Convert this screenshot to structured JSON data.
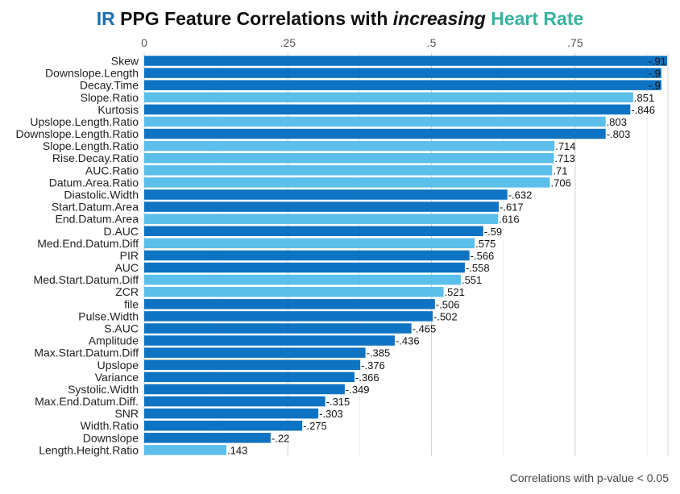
{
  "title": {
    "part1": "IR",
    "part2": " PPG Feature Correlations with ",
    "part3": "increasing",
    "part4": " Heart Rate"
  },
  "caption": "Correlations with p-value < 0.05",
  "colors": {
    "negative": "#0e73c2",
    "positive": "#5bbfea",
    "title_ir": "#1a6fae",
    "title_hr": "#35b3a0"
  },
  "chart_data": {
    "type": "bar",
    "orientation": "horizontal",
    "xlim": [
      0,
      0.91
    ],
    "xticks": [
      0,
      0.25,
      0.5,
      0.75
    ],
    "xtick_labels": [
      "0",
      ".25",
      ".5",
      ".75"
    ],
    "grid": true,
    "categories": [
      "Skew",
      "Downslope.Length",
      "Decay.Time",
      "Slope.Ratio",
      "Kurtosis",
      "Upslope.Length.Ratio",
      "Downslope.Length.Ratio",
      "Slope.Length.Ratio",
      "Rise.Decay.Ratio",
      "AUC.Ratio",
      "Datum.Area.Ratio",
      "Diastolic.Width",
      "Start.Datum.Area",
      "End.Datum.Area",
      "D.AUC",
      "Med.End.Datum.Diff",
      "PIR",
      "AUC",
      "Med.Start.Datum.Diff",
      "ZCR",
      "file",
      "Pulse.Width",
      "S.AUC",
      "Amplitude",
      "Max.Start.Datum.Diff",
      "Upslope",
      "Variance",
      "Systolic.Width",
      "Max.End.Datum.Diff.",
      "SNR",
      "Width.Ratio",
      "Downslope",
      "Length.Height.Ratio"
    ],
    "values": [
      -0.91,
      -0.9,
      -0.9,
      0.851,
      -0.846,
      0.803,
      -0.803,
      0.714,
      0.713,
      0.71,
      0.706,
      -0.632,
      -0.617,
      0.616,
      -0.59,
      0.575,
      -0.566,
      -0.558,
      0.551,
      0.521,
      -0.506,
      -0.502,
      -0.465,
      -0.436,
      -0.385,
      -0.376,
      -0.366,
      -0.349,
      -0.315,
      -0.303,
      -0.275,
      -0.22,
      0.143
    ],
    "value_labels": [
      "-.91",
      "-.9",
      "-.9",
      ".851",
      "-.846",
      ".803",
      "-.803",
      ".714",
      ".713",
      ".71",
      ".706",
      "-.632",
      "-.617",
      ".616",
      "-.59",
      ".575",
      "-.566",
      "-.558",
      ".551",
      ".521",
      "-.506",
      "-.502",
      "-.465",
      "-.436",
      "-.385",
      "-.376",
      "-.366",
      "-.349",
      "-.315",
      "-.303",
      "-.275",
      "-.22",
      ".143"
    ]
  }
}
